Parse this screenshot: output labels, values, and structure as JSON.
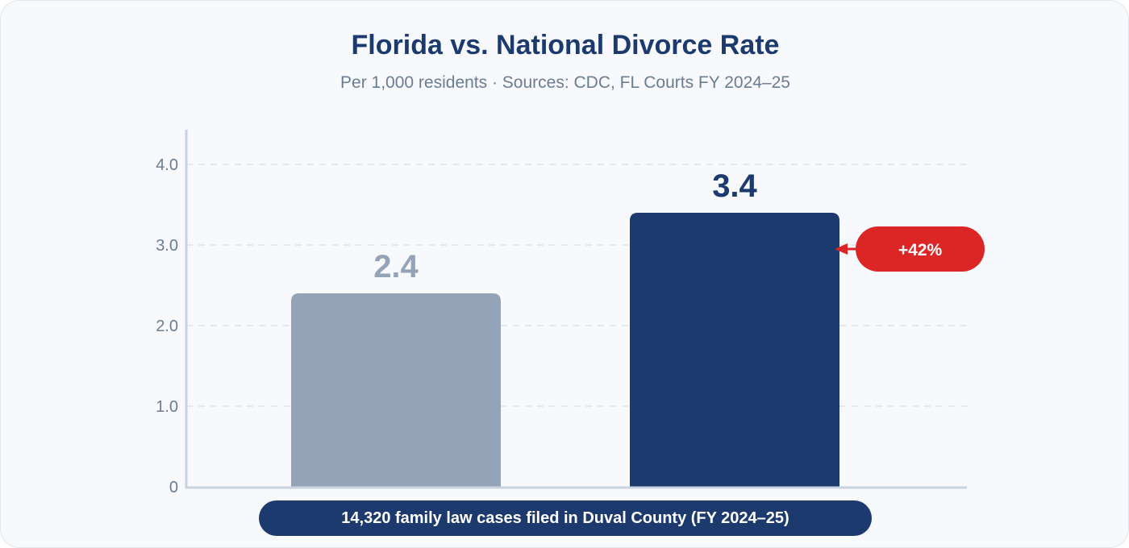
{
  "chart_data": {
    "type": "bar",
    "title": "Florida vs. National Divorce Rate",
    "subtitle": "Per 1,000 residents · Sources: CDC, FL Courts FY 2024–25",
    "categories": [
      "",
      ""
    ],
    "values": [
      2.4,
      3.4
    ],
    "value_labels": [
      "2.4",
      "3.4"
    ],
    "bar_colors": [
      "#94a3b8",
      "#1c3a6e"
    ],
    "label_colors": [
      "#94a3b8",
      "#1c3a6e"
    ],
    "ylim": [
      0,
      4.4
    ],
    "yticks": [
      0,
      1,
      2,
      3,
      4
    ],
    "ytick_labels": [
      "0",
      "1.0",
      "2.0",
      "3.0",
      "4.0"
    ],
    "grid": true,
    "annotation": {
      "text": "+42%",
      "target_bar": 1,
      "color": "#dc2626"
    },
    "footer": "14,320 family law cases filed in Duval County (FY 2024–25)"
  },
  "colors": {
    "title": "#1c3a6e",
    "subtitle": "#6b7c93",
    "axis": "#c9d3e0",
    "grid": "#dde3eb",
    "background": "#f7f9fc"
  }
}
